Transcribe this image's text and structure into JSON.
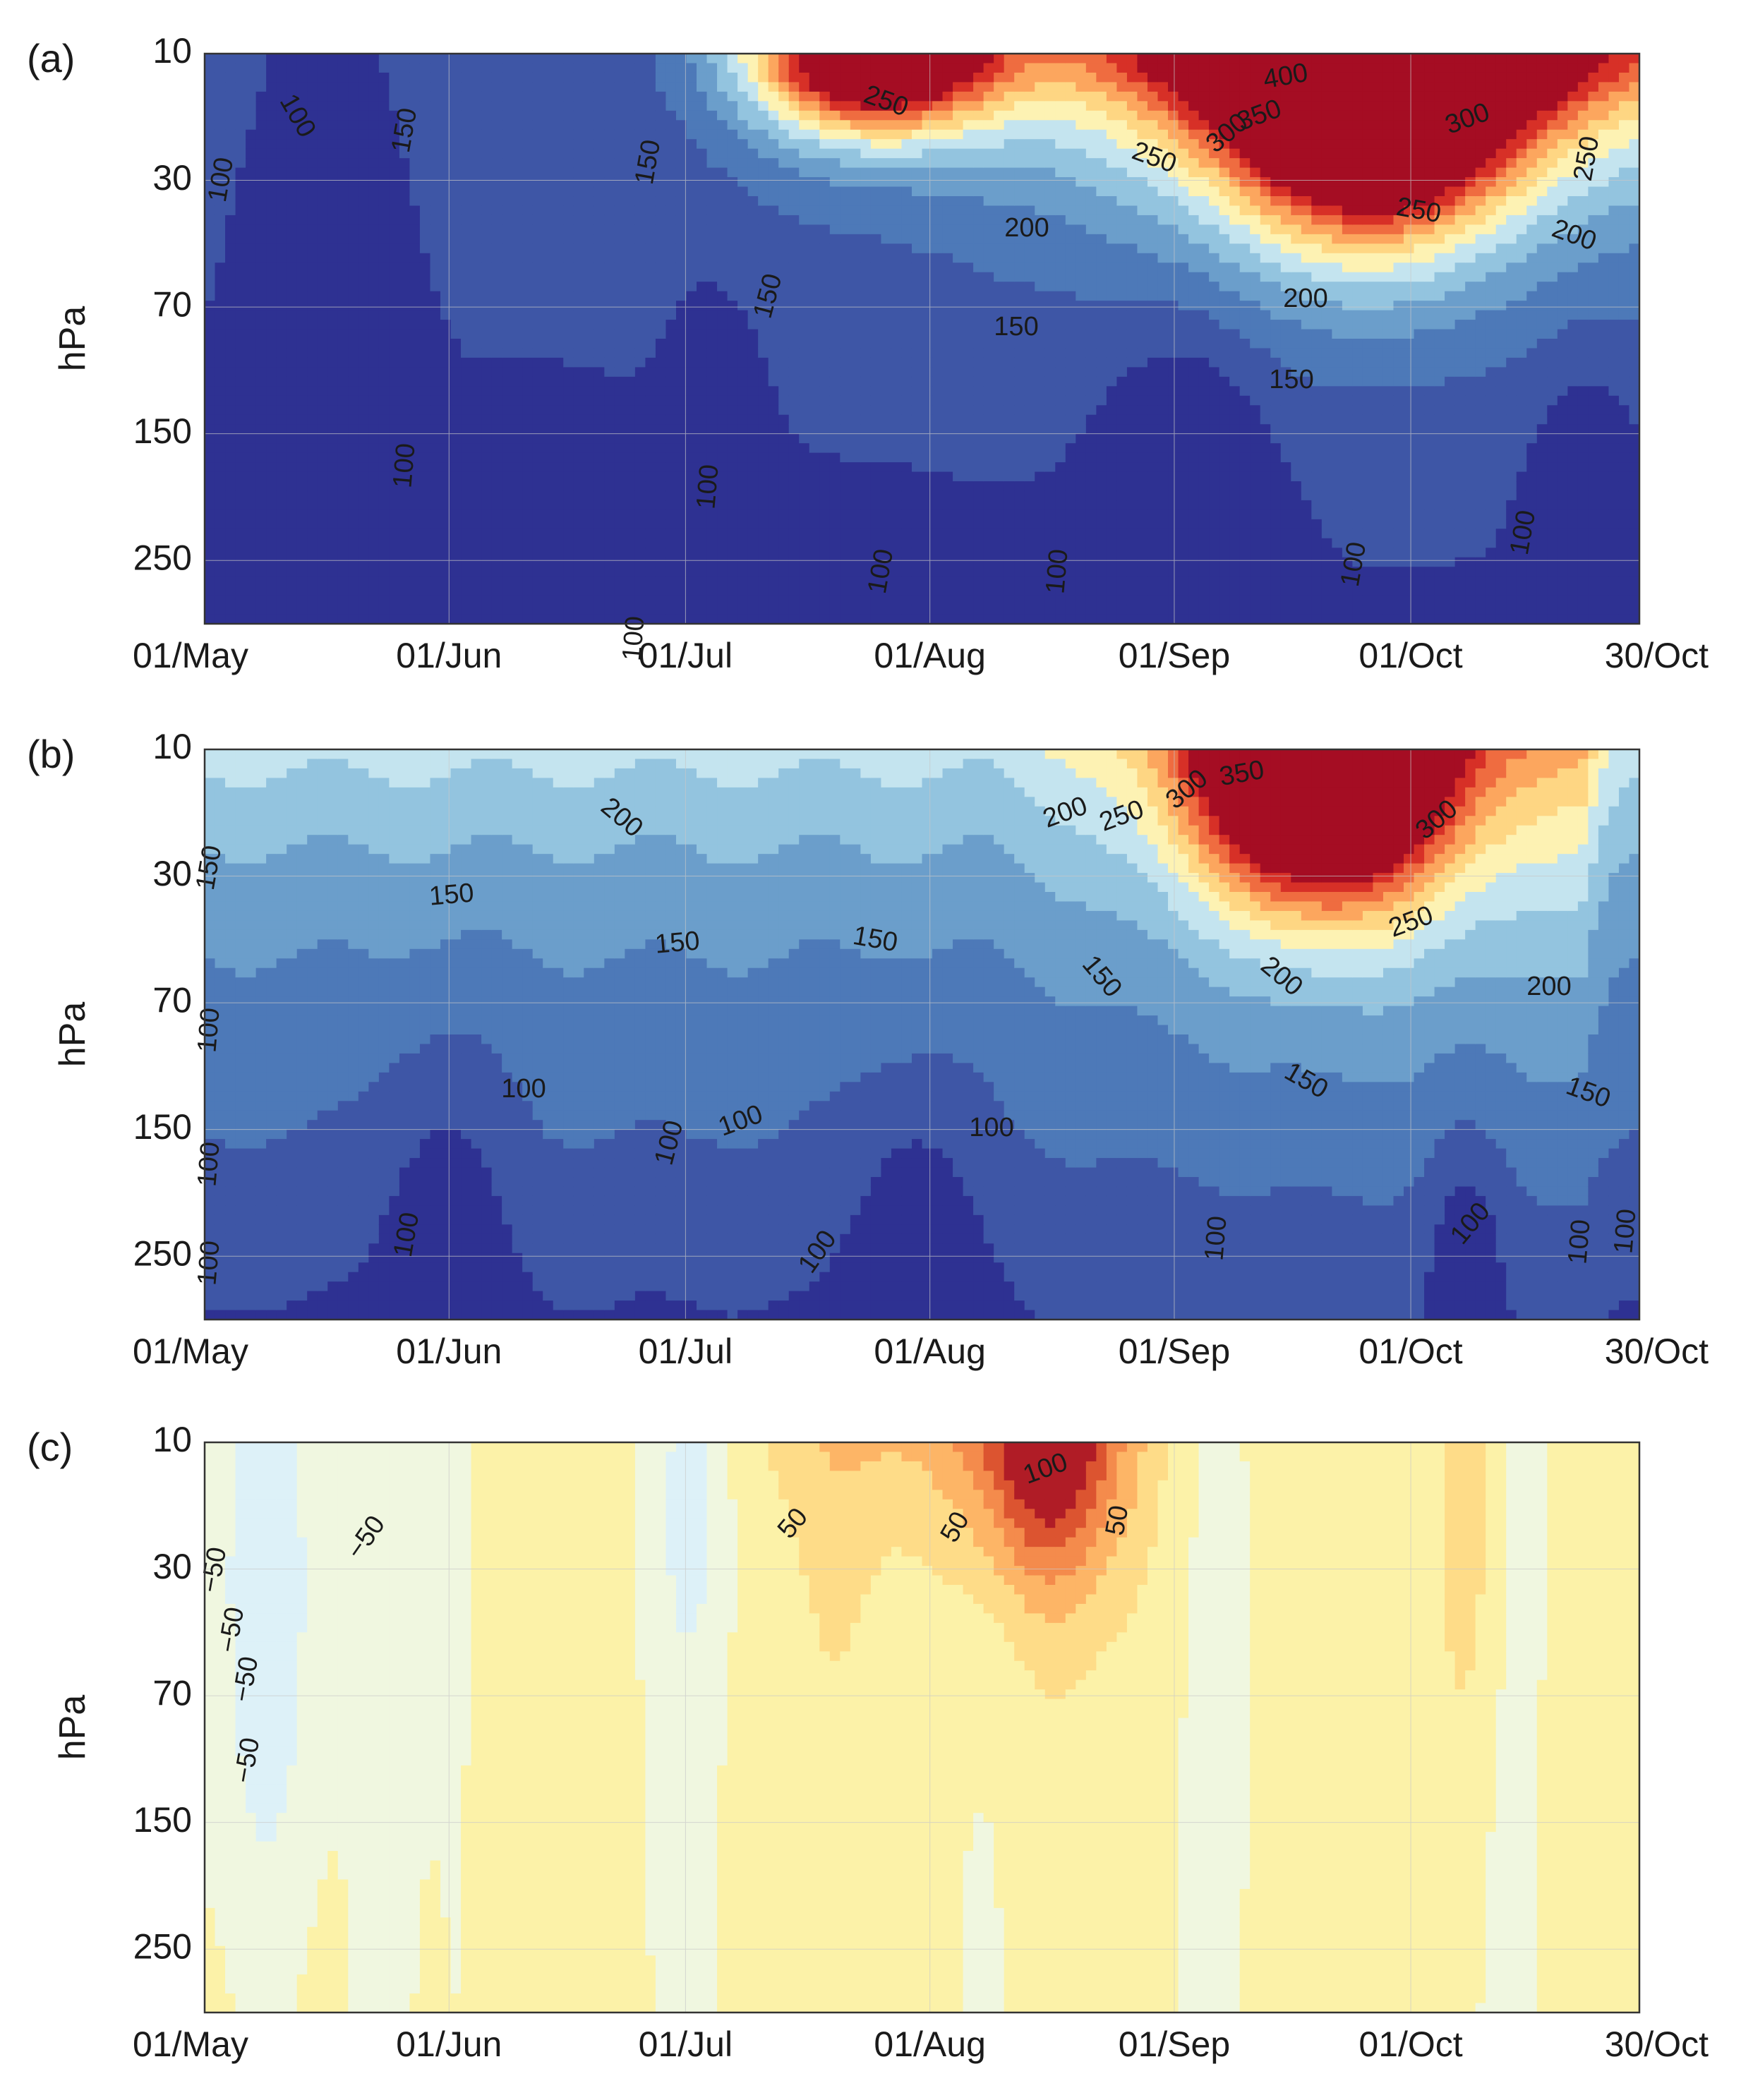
{
  "colors": {
    "frame": "#333333",
    "contour_line": "#111111",
    "grid": "#c8c8c8",
    "scale_abs": [
      "#2e3192",
      "#3e56a6",
      "#4d79b8",
      "#6b9ecb",
      "#93c4df",
      "#c4e4ef",
      "#fdf2b3",
      "#fed683",
      "#fca65e",
      "#ef6c40",
      "#d73027",
      "#a50d23"
    ],
    "scale_diff": [
      "#c2e3ef",
      "#ddf1f8",
      "#f0f7e0",
      "#fcf2a8",
      "#fedc88",
      "#fdb566",
      "#f48b4c",
      "#dc5430",
      "#b01c26"
    ]
  },
  "chart_data": [
    {
      "type": "heatmap",
      "panel_label": "(a)",
      "ylabel": "hPa",
      "yticks": [
        "10",
        "30",
        "70",
        "150",
        "250"
      ],
      "xticks": [
        "01/May",
        "01/Jun",
        "01/Jul",
        "01/Aug",
        "01/Sep",
        "01/Oct",
        "30/Oct"
      ],
      "x_tick_days": [
        0,
        31,
        61,
        92,
        123,
        153,
        182
      ],
      "xlim": [
        0,
        182
      ],
      "y_index_range": [
        0,
        4.5
      ],
      "contour_levels": [
        100,
        125,
        150,
        175,
        200,
        225,
        250,
        275,
        300,
        325,
        350,
        375,
        400
      ],
      "contour_labels": [
        "100",
        "100",
        "100",
        "100",
        "100",
        "100",
        "100",
        "100",
        "100",
        "150",
        "150",
        "150",
        "150",
        "150",
        "200",
        "200",
        "200",
        "250",
        "250",
        "250",
        "250",
        "300",
        "300",
        "350",
        "400"
      ],
      "features": [
        {
          "day": 148,
          "p_idx": 0.0,
          "value": 425,
          "width": 16,
          "height": 1.2
        },
        {
          "day": 85,
          "p_idx": 0.0,
          "value": 290,
          "width": 14,
          "height": 0.6
        },
        {
          "day": 15,
          "p_idx": 0.3,
          "value": -55,
          "width": 9,
          "height": 4.0
        },
        {
          "day": 65,
          "p_idx": 3.8,
          "value": -45,
          "width": 5,
          "height": 1.5
        },
        {
          "day": 125,
          "p_idx": 3.5,
          "value": -45,
          "width": 10,
          "height": 1.4
        },
        {
          "day": 175,
          "p_idx": 3.8,
          "value": -40,
          "width": 6,
          "height": 1.2
        }
      ]
    },
    {
      "type": "heatmap",
      "panel_label": "(b)",
      "ylabel": "hPa",
      "yticks": [
        "10",
        "30",
        "70",
        "150",
        "250"
      ],
      "xticks": [
        "01/May",
        "01/Jun",
        "01/Jul",
        "01/Aug",
        "01/Sep",
        "01/Oct",
        "30/Oct"
      ],
      "x_tick_days": [
        0,
        31,
        61,
        92,
        123,
        153,
        182
      ],
      "xlim": [
        0,
        182
      ],
      "y_index_range": [
        0,
        4.5
      ],
      "contour_levels": [
        100,
        125,
        150,
        175,
        200,
        225,
        250,
        275,
        300,
        325,
        350,
        375
      ],
      "contour_labels": [
        "100",
        "100",
        "100",
        "100",
        "100",
        "100",
        "100",
        "100",
        "100",
        "100",
        "100",
        "100",
        "100",
        "150",
        "150",
        "150",
        "150",
        "150",
        "150",
        "150",
        "200",
        "200",
        "200",
        "200",
        "250",
        "250",
        "300",
        "300",
        "350"
      ],
      "features": [
        {
          "day": 142,
          "p_idx": 0.0,
          "value": 380,
          "width": 15,
          "height": 1.1
        },
        {
          "day": 30,
          "p_idx": 3.5,
          "value": -30,
          "width": 8,
          "height": 1.4
        },
        {
          "day": 90,
          "p_idx": 3.6,
          "value": -30,
          "width": 8,
          "height": 1.2
        },
        {
          "day": 160,
          "p_idx": 3.8,
          "value": -30,
          "width": 5,
          "height": 1.0
        }
      ]
    },
    {
      "type": "heatmap",
      "panel_label": "(c)",
      "ylabel": "hPa",
      "yticks": [
        "10",
        "30",
        "70",
        "150",
        "250"
      ],
      "xticks": [
        "01/May",
        "01/Jun",
        "01/Jul",
        "01/Aug",
        "01/Sep",
        "01/Oct",
        "30/Oct"
      ],
      "x_tick_days": [
        0,
        31,
        61,
        92,
        123,
        153,
        182
      ],
      "xlim": [
        0,
        182
      ],
      "y_index_range": [
        0,
        4.5
      ],
      "contour_levels": [
        -50,
        -25,
        0,
        25,
        50,
        75,
        100
      ],
      "zero_line_emphasized": true,
      "contour_labels": [
        "−50",
        "−50",
        "−50",
        "−50",
        "−50",
        "50",
        "50",
        "50",
        "100"
      ],
      "features": [
        {
          "day": 107,
          "p_idx": 0.0,
          "value": 120,
          "width": 9,
          "height": 1.1
        },
        {
          "day": 8,
          "p_idx": 1.0,
          "value": -60,
          "width": 7,
          "height": 3.0
        },
        {
          "day": 62,
          "p_idx": 0.5,
          "value": -30,
          "width": 5,
          "height": 1.5
        },
        {
          "day": 160,
          "p_idx": 0.5,
          "value": 40,
          "width": 4,
          "height": 2.0
        }
      ]
    }
  ]
}
